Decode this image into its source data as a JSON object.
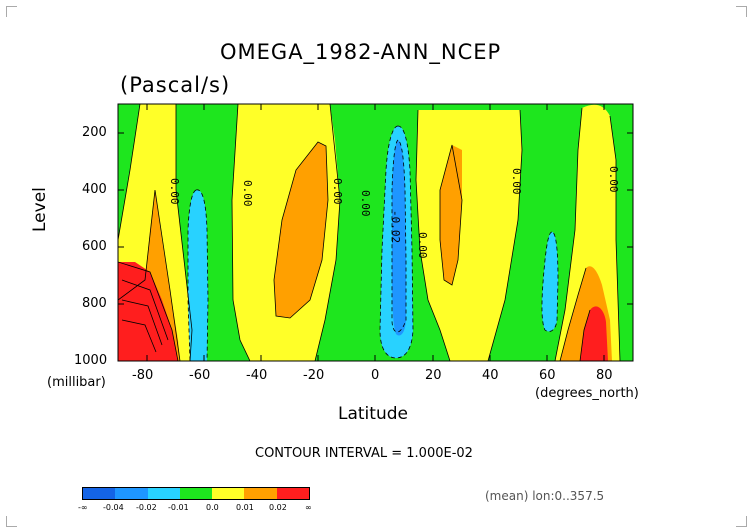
{
  "title": "OMEGA_1982-ANN_NCEP",
  "subtitle": "(Pascal/s)",
  "footer": {
    "contour_interval": "CONTOUR INTERVAL = 1.000E-02",
    "mean_note": "(mean) lon:0..357.5"
  },
  "chart_data": {
    "type": "heatmap",
    "xlabel": "Latitude",
    "ylabel": "Level",
    "x_unit": "(degrees_north)",
    "y_unit": "(millibar)",
    "xlim": [
      -90,
      90
    ],
    "ylim": [
      1000,
      100
    ],
    "x_ticks": [
      "-80",
      "-60",
      "-40",
      "-20",
      "0",
      "20",
      "40",
      "60",
      "80"
    ],
    "y_ticks": [
      "200",
      "400",
      "600",
      "800",
      "1000"
    ],
    "contour_labels": [
      "0.00",
      "0.00",
      "0.00",
      "0.00",
      "-0.02",
      "0.00",
      "0.00",
      "0.00"
    ],
    "colorbar": {
      "labels": [
        "-∞",
        "-0.04",
        "-0.02",
        "-0.01",
        "0.0",
        "0.01",
        "0.02",
        "∞"
      ],
      "colors": [
        "#1464e6",
        "#1e96ff",
        "#28d2ff",
        "#1ee61e",
        "#ffff28",
        "#ffa000",
        "#ff1e1e"
      ]
    }
  }
}
